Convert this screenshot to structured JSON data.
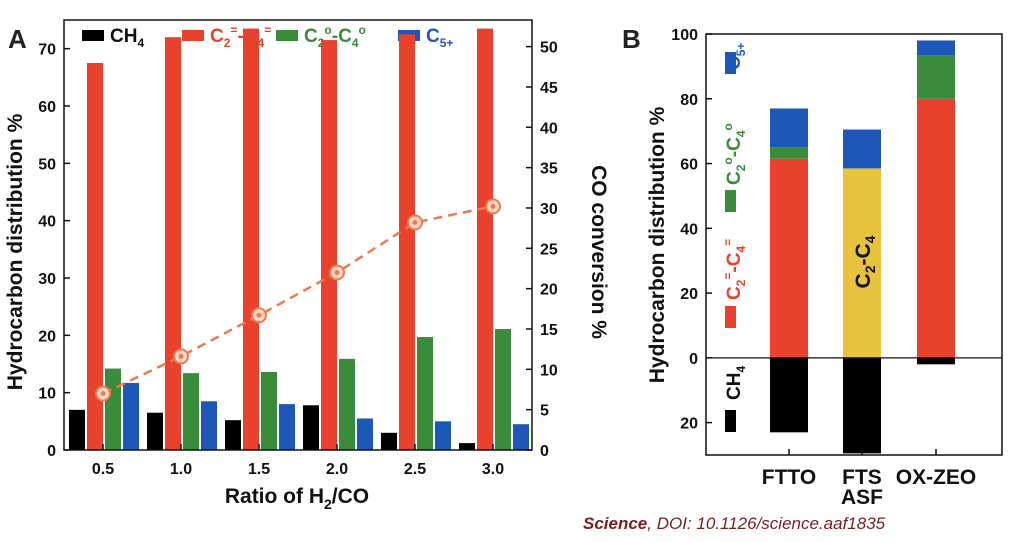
{
  "colors": {
    "CH4": "#000000",
    "C2=-C4=": "#e8412c",
    "C2o-C4o": "#3a8b3a",
    "C5+": "#1d57b8",
    "C2-C4": "#e7c23c",
    "conversion": "#ee7a50"
  },
  "legend": {
    "ch4": {
      "main": "CH",
      "sub": "4"
    },
    "olefins": {
      "p1": "C",
      "s1": "2",
      "sup1": "=",
      "p2": "-C",
      "s2": "4",
      "sup2": "="
    },
    "paraffins": {
      "p1": "C",
      "s1": "2",
      "sup1": "o",
      "p2": "-C",
      "s2": "4",
      "sup2": "o"
    },
    "c5": {
      "main": "C",
      "sub": "5+"
    }
  },
  "credit": {
    "journal": "Science",
    "doi": ", DOI: 10.1126/science.aaf1835"
  },
  "chart_data": [
    {
      "panel_label": "A",
      "type": "bar",
      "categories": [
        "0.5",
        "1.0",
        "1.5",
        "2.0",
        "2.5",
        "3.0"
      ],
      "xlabel": {
        "prefix": "Ratio of H",
        "sub": "2",
        "suffix": "/CO"
      },
      "ylabel": "Hydrocarbon distribution %",
      "ylim": [
        0,
        75
      ],
      "yticks": [
        0,
        10,
        20,
        30,
        40,
        50,
        60,
        70
      ],
      "series": [
        {
          "name": "CH4",
          "values": [
            7.0,
            6.5,
            5.2,
            7.8,
            3.0,
            1.2
          ]
        },
        {
          "name": "C2=-C4=",
          "values": [
            67.5,
            72.0,
            73.5,
            71.5,
            72.5,
            73.5
          ]
        },
        {
          "name": "C2o-C4o",
          "values": [
            14.2,
            13.4,
            13.6,
            15.9,
            19.7,
            21.1
          ]
        },
        {
          "name": "C5+",
          "values": [
            11.7,
            8.5,
            8.0,
            5.5,
            5.0,
            4.5
          ]
        }
      ],
      "secondary": {
        "type": "line",
        "ylabel": "CO conversion %",
        "ylim": [
          0,
          53.3
        ],
        "yticks": [
          0,
          5,
          10,
          15,
          20,
          25,
          30,
          35,
          40,
          45,
          50
        ],
        "x": [
          "0.5",
          "1.0",
          "1.5",
          "2.0",
          "2.5",
          "3.0"
        ],
        "values": [
          7.0,
          11.6,
          16.7,
          22.0,
          28.2,
          30.2
        ]
      },
      "grid": false
    },
    {
      "panel_label": "B",
      "type": "bar",
      "stacked": true,
      "categories": [
        "FTTO",
        "FTS\nASF",
        "OX-ZEO"
      ],
      "ylabel": "Hydrocarbon distribution %",
      "ylim": [
        -30,
        100
      ],
      "yticks": [
        0,
        20,
        40,
        60,
        80,
        100
      ],
      "ytick_labels": [
        "0",
        "20",
        "40",
        "60",
        "80",
        "100"
      ],
      "neg_ytick_labels": [
        {
          "value": -20,
          "label": "20"
        }
      ],
      "series": [
        {
          "name": "CH4",
          "values": [
            -23,
            -29.5,
            -2
          ]
        },
        {
          "name": "C2=-C4=",
          "values": [
            61.5,
            0,
            80
          ]
        },
        {
          "name": "C2-C4",
          "values": [
            0,
            58.5,
            0
          ]
        },
        {
          "name": "C2o-C4o",
          "values": [
            3.5,
            0,
            13.5
          ]
        },
        {
          "name": "C5+",
          "values": [
            12,
            12,
            4.5
          ]
        }
      ],
      "annotations": {
        "c2c4": {
          "p1": "C",
          "s1": "2",
          "p2": "-C",
          "s2": "4"
        }
      },
      "legend_position": "left-vertical",
      "grid": false
    }
  ]
}
